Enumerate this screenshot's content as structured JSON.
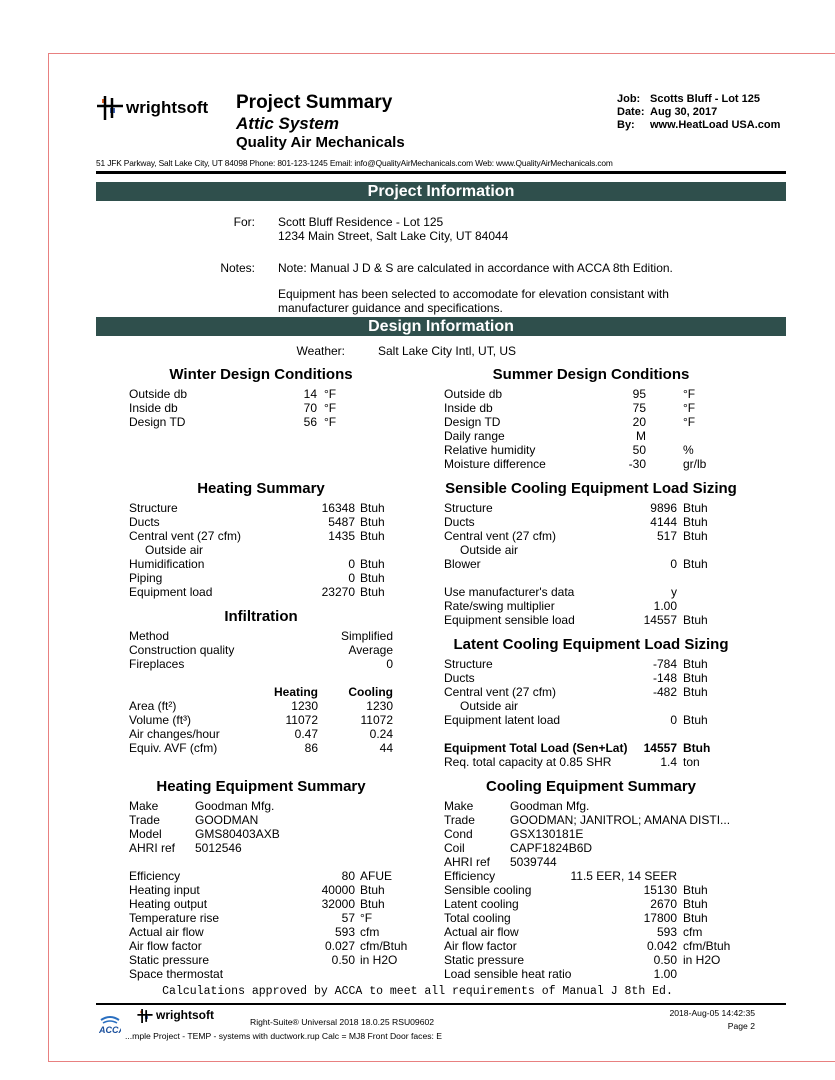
{
  "header": {
    "brand": "wrightsoft",
    "title": "Project Summary",
    "subtitle": "Attic System",
    "company": "Quality Air Mechanicals",
    "meta": [
      {
        "label": "Job:",
        "value": "Scotts Bluff - Lot 125"
      },
      {
        "label": "Date:",
        "value": "Aug 30, 2017"
      },
      {
        "label": "By:",
        "value": "www.HeatLoad USA.com"
      }
    ],
    "address": "51 JFK Parkway, Salt Lake City, UT 84098 Phone: 801-123-1245   Email: info@QualityAirMechanicals.com Web: www.QualityAirMechanicals.com"
  },
  "colors": {
    "section_bar": "#2f4f4c",
    "frame": "#e88080"
  },
  "project": {
    "bar": "Project Information",
    "for_label": "For:",
    "for_lines": [
      "Scott Bluff Residence - Lot 125",
      "1234 Main Street, Salt Lake City, UT 84044"
    ],
    "notes_label": "Notes:",
    "notes_lines": [
      "Note: Manual J D & S are calculated in accordance with ACCA 8th Edition.",
      "",
      "Equipment has been selected to accomodate for elevation consistant with",
      "manufacturer guidance and specifications."
    ]
  },
  "design": {
    "bar": "Design Information",
    "weather_label": "Weather:",
    "weather": "Salt Lake City Intl, UT, US",
    "winter": {
      "title": "Winter Design Conditions",
      "rows": [
        {
          "label": "Outside db",
          "value": "14",
          "unit": "°F"
        },
        {
          "label": "Inside db",
          "value": "70",
          "unit": "°F"
        },
        {
          "label": "Design TD",
          "value": "56",
          "unit": "°F"
        }
      ]
    },
    "summer": {
      "title": "Summer Design Conditions",
      "rows": [
        {
          "label": "Outside db",
          "value": "95",
          "unit": "°F"
        },
        {
          "label": "Inside db",
          "value": "75",
          "unit": "°F"
        },
        {
          "label": "Design TD",
          "value": "20",
          "unit": "°F"
        },
        {
          "label": "Daily range",
          "value": "M",
          "unit": ""
        },
        {
          "label": "Relative humidity",
          "value": "50",
          "unit": "%"
        },
        {
          "label": "Moisture difference",
          "value": "-30",
          "unit": "gr/lb"
        }
      ]
    },
    "heating": {
      "title": "Heating Summary",
      "rows": [
        {
          "label": "Structure",
          "value": "16348",
          "unit": "Btuh"
        },
        {
          "label": "Ducts",
          "value": "5487",
          "unit": "Btuh"
        },
        {
          "label": "Central vent (27 cfm)",
          "value": "1435",
          "unit": "Btuh"
        },
        {
          "label": "Outside air",
          "value": "",
          "unit": "",
          "indent": true
        },
        {
          "label": "Humidification",
          "value": "0",
          "unit": "Btuh"
        },
        {
          "label": "Piping",
          "value": "0",
          "unit": "Btuh"
        },
        {
          "label": "Equipment load",
          "value": "23270",
          "unit": "Btuh"
        }
      ]
    },
    "sensible": {
      "title": "Sensible Cooling Equipment Load Sizing",
      "rows": [
        {
          "label": "Structure",
          "value": "9896",
          "unit": "Btuh"
        },
        {
          "label": "Ducts",
          "value": "4144",
          "unit": "Btuh"
        },
        {
          "label": "Central vent (27 cfm)",
          "value": "517",
          "unit": "Btuh"
        },
        {
          "label": "Outside air",
          "value": "",
          "unit": "",
          "indent": true
        },
        {
          "label": "Blower",
          "value": "0",
          "unit": "Btuh"
        },
        {
          "label": "",
          "value": "",
          "unit": ""
        },
        {
          "label": "Use manufacturer's data",
          "value": "y",
          "unit": ""
        },
        {
          "label": "Rate/swing multiplier",
          "value": "1.00",
          "unit": ""
        },
        {
          "label": "Equipment sensible load",
          "value": "14557",
          "unit": "Btuh"
        }
      ]
    },
    "infiltration": {
      "title": "Infiltration",
      "rows": [
        {
          "label": "Method",
          "value": "Simplified"
        },
        {
          "label": "Construction quality",
          "value": "Average"
        },
        {
          "label": "Fireplaces",
          "value": "0"
        }
      ],
      "col_heating": "Heating",
      "col_cooling": "Cooling",
      "table": [
        {
          "label": "Area (ft²)",
          "heating": "1230",
          "cooling": "1230"
        },
        {
          "label": "Volume (ft³)",
          "heating": "11072",
          "cooling": "11072"
        },
        {
          "label": "Air changes/hour",
          "heating": "0.47",
          "cooling": "0.24"
        },
        {
          "label": "Equiv. AVF (cfm)",
          "heating": "86",
          "cooling": "44"
        }
      ]
    },
    "latent": {
      "title": "Latent Cooling Equipment Load Sizing",
      "rows": [
        {
          "label": "Structure",
          "value": "-784",
          "unit": "Btuh"
        },
        {
          "label": "Ducts",
          "value": "-148",
          "unit": "Btuh"
        },
        {
          "label": "Central vent (27 cfm)",
          "value": "-482",
          "unit": "Btuh"
        },
        {
          "label": "Outside air",
          "value": "",
          "unit": "",
          "indent": true
        },
        {
          "label": "Equipment latent load",
          "value": "0",
          "unit": "Btuh"
        },
        {
          "label": "",
          "value": "",
          "unit": ""
        },
        {
          "label": "Equipment Total Load (Sen+Lat)",
          "value": "14557",
          "unit": "Btuh",
          "bold": true
        },
        {
          "label": "Req. total capacity at 0.85 SHR",
          "value": "1.4",
          "unit": "ton"
        }
      ]
    },
    "heat_equip": {
      "title": "Heating Equipment Summary",
      "info": [
        {
          "label": "Make",
          "value": "Goodman Mfg."
        },
        {
          "label": "Trade",
          "value": "GOODMAN"
        },
        {
          "label": "Model",
          "value": "GMS80403AXB"
        },
        {
          "label": "AHRI ref",
          "value": "5012546"
        }
      ],
      "rows": [
        {
          "label": "Efficiency",
          "value": "80",
          "unit": "AFUE"
        },
        {
          "label": "Heating input",
          "value": "40000",
          "unit": "Btuh"
        },
        {
          "label": "Heating output",
          "value": "32000",
          "unit": "Btuh"
        },
        {
          "label": "Temperature rise",
          "value": "57",
          "unit": "°F"
        },
        {
          "label": "Actual air flow",
          "value": "593",
          "unit": "cfm"
        },
        {
          "label": "Air flow factor",
          "value": "0.027",
          "unit": "cfm/Btuh"
        },
        {
          "label": "Static pressure",
          "value": "0.50",
          "unit": "in H2O"
        },
        {
          "label": "Space thermostat",
          "value": "",
          "unit": ""
        }
      ]
    },
    "cool_equip": {
      "title": "Cooling Equipment Summary",
      "info": [
        {
          "label": "Make",
          "value": "Goodman Mfg."
        },
        {
          "label": "Trade",
          "value": "GOODMAN; JANITROL; AMANA DISTI..."
        },
        {
          "label": "Cond",
          "value": "GSX130181E"
        },
        {
          "label": "Coil",
          "value": "CAPF1824B6D"
        },
        {
          "label": "AHRI ref",
          "value": "5039744"
        }
      ],
      "rows": [
        {
          "label": "Efficiency",
          "value": "11.5 EER, 14 SEER",
          "unit": ""
        },
        {
          "label": "Sensible cooling",
          "value": "15130",
          "unit": "Btuh"
        },
        {
          "label": "Latent cooling",
          "value": "2670",
          "unit": "Btuh"
        },
        {
          "label": "Total cooling",
          "value": "17800",
          "unit": "Btuh"
        },
        {
          "label": "Actual air flow",
          "value": "593",
          "unit": "cfm"
        },
        {
          "label": "Air flow factor",
          "value": "0.042",
          "unit": "cfm/Btuh"
        },
        {
          "label": "Static pressure",
          "value": "0.50",
          "unit": "in H2O"
        },
        {
          "label": "Load sensible heat ratio",
          "value": "1.00",
          "unit": ""
        }
      ]
    }
  },
  "footer": {
    "approval": "Calculations approved by ACCA to meet all requirements of Manual J 8th Ed.",
    "brand": "wrightsoft",
    "acca": "ACCA",
    "software": "Right-Suite® Universal 2018 18.0.25 RSU09602",
    "file": "...mple Project - TEMP - systems with ductwork.rup   Calc = MJ8   Front Door faces: E",
    "timestamp": "2018-Aug-05 14:42:35",
    "page": "Page 2"
  }
}
